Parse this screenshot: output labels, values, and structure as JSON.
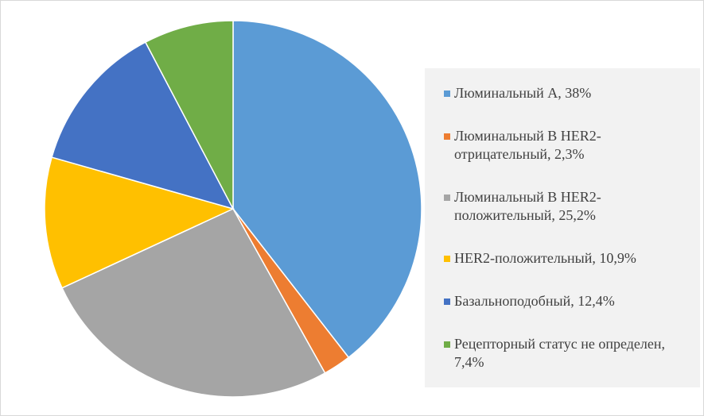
{
  "chart_data": {
    "type": "pie",
    "categories": [
      "Люминальный А, 38%",
      "Люминальный В HER2-отрицательный, 2,3%",
      "Люминальный В HER2-положительный, 25,2%",
      "HER2-положительный, 10,9%",
      "Базальноподобный, 12,4%",
      "Рецепторный статус не определен, 7,4%"
    ],
    "values": [
      38,
      2.3,
      25.2,
      10.9,
      12.4,
      7.4
    ],
    "colors": [
      "#5b9bd5",
      "#ed7d31",
      "#a5a5a5",
      "#ffc000",
      "#4472c4",
      "#70ad47"
    ],
    "legend": "right"
  }
}
